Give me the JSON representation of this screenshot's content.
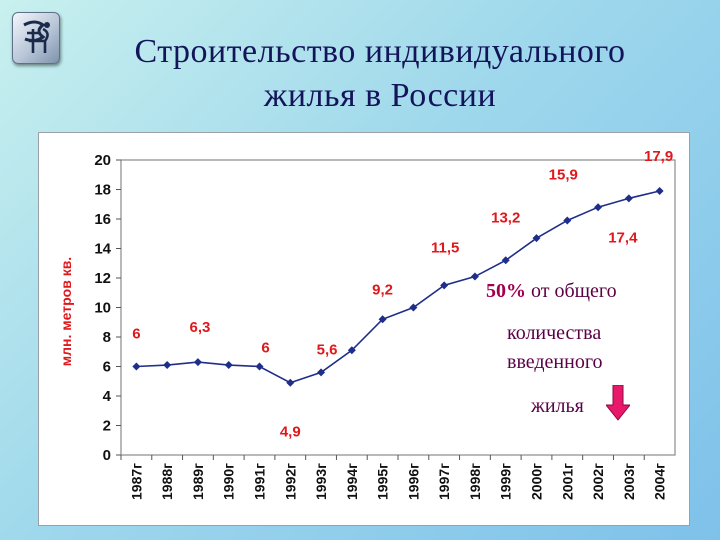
{
  "slide": {
    "title_line1": "Строительство индивидуального",
    "title_line2": "жилья в России"
  },
  "note": {
    "percent": "50%",
    "line1_rest": " от общего",
    "line2": "количества",
    "line3": "введенного",
    "line4": "жилья"
  },
  "colors": {
    "line": "#1f2e8a",
    "data_label": "#e0181c",
    "axis_label": "#e0181c",
    "note_text": "#5a0044",
    "arrow": "#e8186a"
  },
  "icons": [
    "logo-icon",
    "arrow-down-icon"
  ],
  "chart_data": {
    "type": "line",
    "title": "",
    "xlabel": "",
    "ylabel": "млн. метров кв.",
    "ylim": [
      0,
      20
    ],
    "yticks": [
      "0",
      "2",
      "4",
      "6",
      "8",
      "10",
      "12",
      "14",
      "16",
      "18",
      "20"
    ],
    "grid": false,
    "categories": [
      "1987г",
      "1988г",
      "1989г",
      "1990г",
      "1991г",
      "1992г",
      "1993г",
      "1994г",
      "1995г",
      "1996г",
      "1997г",
      "1998г",
      "1999г",
      "2000г",
      "2001г",
      "2002г",
      "2003г",
      "2004г"
    ],
    "values": [
      6,
      6.1,
      6.3,
      6.1,
      6,
      4.9,
      5.6,
      7.1,
      9.2,
      10,
      11.5,
      12.1,
      13.2,
      14.7,
      15.9,
      16.8,
      17.4,
      17.9
    ],
    "data_labels": [
      {
        "text": "6",
        "index": 0
      },
      {
        "text": "6,3",
        "index": 2
      },
      {
        "text": "6",
        "index": 4
      },
      {
        "text": "4,9",
        "index": 5
      },
      {
        "text": "5,6",
        "index": 6
      },
      {
        "text": "9,2",
        "index": 8
      },
      {
        "text": "11,5",
        "index": 10
      },
      {
        "text": "13,2",
        "index": 12
      },
      {
        "text": "15,9",
        "index": 14
      },
      {
        "text": "17,4",
        "index": 16
      },
      {
        "text": "17,9",
        "index": 17
      }
    ]
  }
}
